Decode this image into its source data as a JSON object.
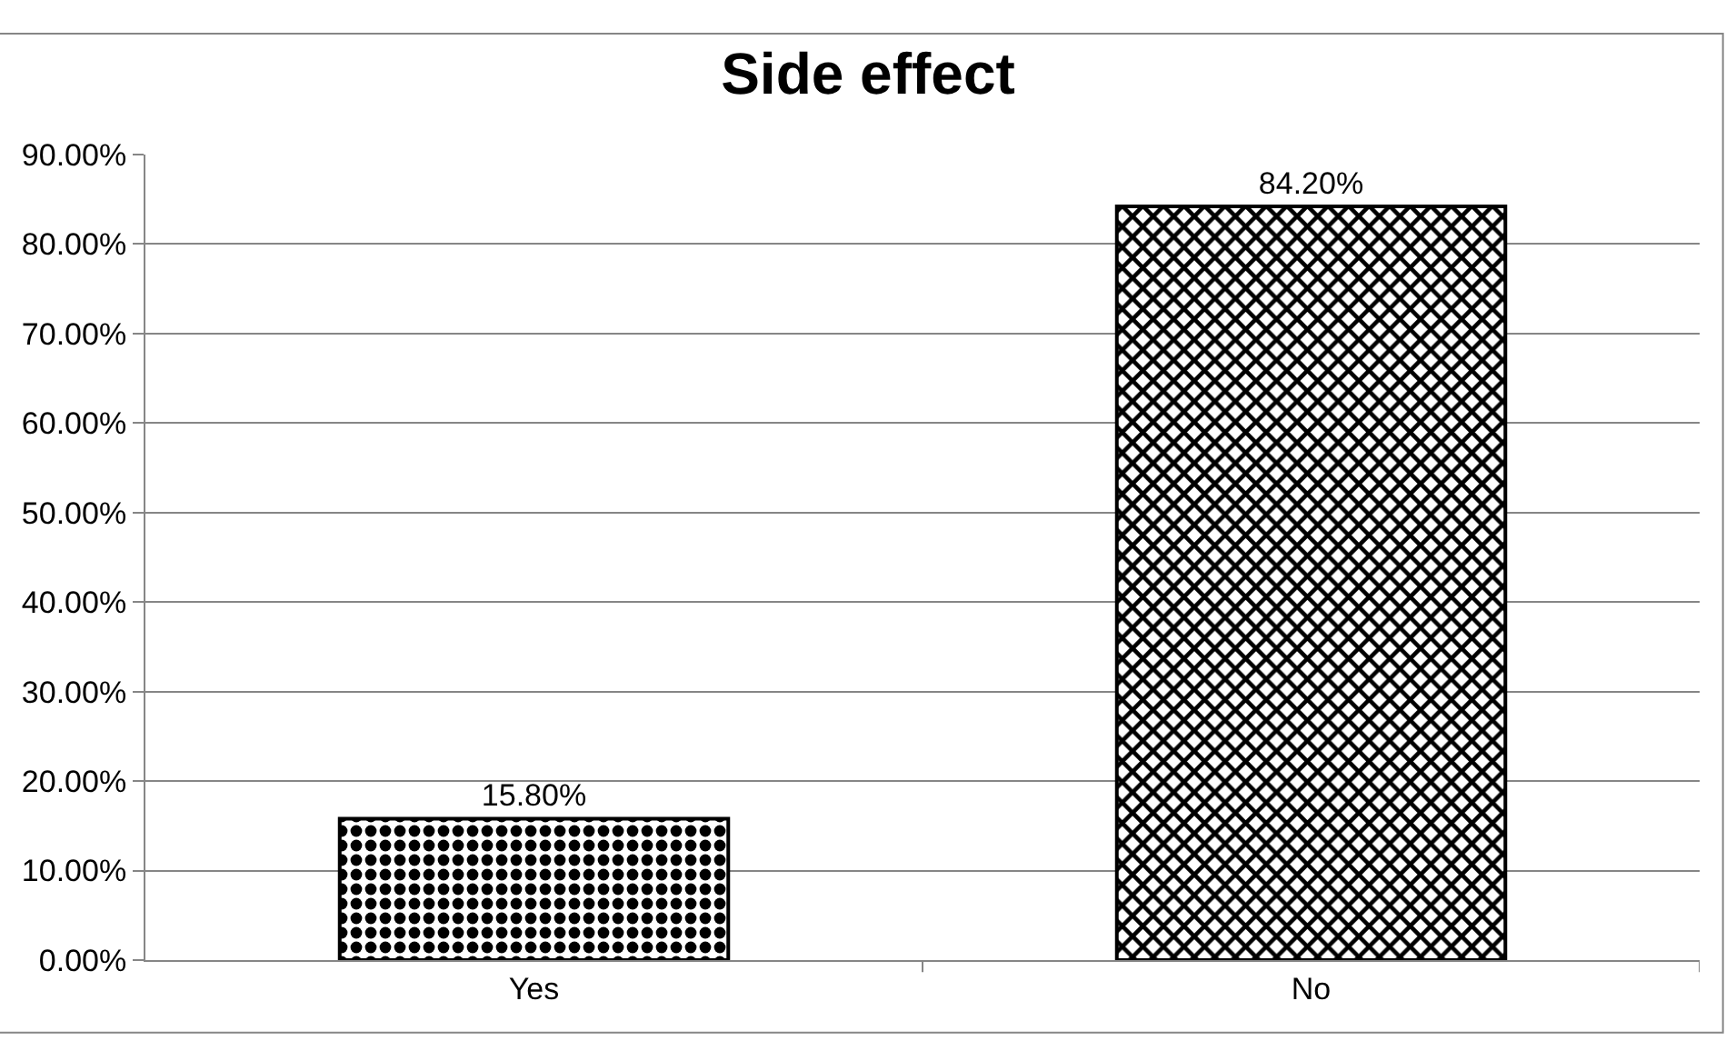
{
  "chart_data": {
    "type": "bar",
    "title": "Side effect",
    "categories": [
      "Yes",
      "No"
    ],
    "values": [
      15.8,
      84.2
    ],
    "value_labels": [
      "15.80%",
      "84.20%"
    ],
    "colors": [
      "#000000",
      "#000000"
    ],
    "ylim": [
      0,
      90
    ],
    "yticks": [
      {
        "value": 0,
        "label": "0.00%"
      },
      {
        "value": 10,
        "label": "10.00%"
      },
      {
        "value": 20,
        "label": "20.00%"
      },
      {
        "value": 30,
        "label": "30.00%"
      },
      {
        "value": 40,
        "label": "40.00%"
      },
      {
        "value": 50,
        "label": "50.00%"
      },
      {
        "value": 60,
        "label": "60.00%"
      },
      {
        "value": 70,
        "label": "70.00%"
      },
      {
        "value": 80,
        "label": "80.00%"
      },
      {
        "value": 90,
        "label": "90.00%"
      }
    ],
    "grid": "y"
  }
}
